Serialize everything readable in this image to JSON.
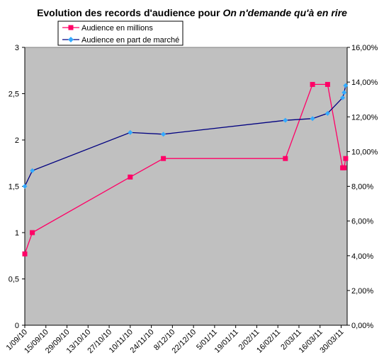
{
  "chart_data": {
    "type": "line",
    "title": {
      "prefix": "Evolution des records d'audience pour ",
      "show": "On n'demande qu'à en rire"
    },
    "plot_background": "#c0c0c0",
    "x_tick_labels": [
      {
        "date": "2010-09-01",
        "label": "1/09/10"
      },
      {
        "date": "2010-09-15",
        "label": "15/09/10"
      },
      {
        "date": "2010-09-29",
        "label": "29/09/10"
      },
      {
        "date": "2010-10-13",
        "label": "13/10/10"
      },
      {
        "date": "2010-10-27",
        "label": "27/10/10"
      },
      {
        "date": "2010-11-10",
        "label": "10/11/10"
      },
      {
        "date": "2010-11-24",
        "label": "24/11/10"
      },
      {
        "date": "2010-12-08",
        "label": "8/12/10"
      },
      {
        "date": "2010-12-22",
        "label": "22/12/10"
      },
      {
        "date": "2011-01-05",
        "label": "5/01/11"
      },
      {
        "date": "2011-01-19",
        "label": "19/01/11"
      },
      {
        "date": "2011-02-02",
        "label": "2/02/11"
      },
      {
        "date": "2011-02-16",
        "label": "16/02/11"
      },
      {
        "date": "2011-03-02",
        "label": "2/03/11"
      },
      {
        "date": "2011-03-16",
        "label": "16/03/11"
      },
      {
        "date": "2011-03-30",
        "label": "30/03/11"
      }
    ],
    "x_range": [
      "2010-09-01",
      "2011-04-03"
    ],
    "y_left": {
      "range": [
        0,
        3
      ],
      "ticks": [
        0,
        0.5,
        1,
        1.5,
        2,
        2.5,
        3
      ],
      "tick_labels": [
        "0",
        "0,5",
        "1",
        "1,5",
        "2",
        "2,5",
        "3"
      ]
    },
    "y_right": {
      "range": [
        0,
        16
      ],
      "ticks": [
        0,
        2,
        4,
        6,
        8,
        10,
        12,
        14,
        16
      ],
      "tick_labels": [
        "0,00%",
        "2,00%",
        "4,00%",
        "6,00%",
        "8,00%",
        "10,00%",
        "12,00%",
        "14,00%",
        "16,00%"
      ]
    },
    "grid": false,
    "legend_position": "top-center",
    "series": [
      {
        "name": "Audience en millions",
        "axis": "left",
        "color": "#ff0066",
        "marker": "square",
        "points": [
          {
            "x": "2010-09-01",
            "y": 0.77
          },
          {
            "x": "2010-09-06",
            "y": 1.0
          },
          {
            "x": "2010-11-10",
            "y": 1.6
          },
          {
            "x": "2010-12-02",
            "y": 1.8
          },
          {
            "x": "2011-02-21",
            "y": 1.8
          },
          {
            "x": "2011-03-11",
            "y": 2.6
          },
          {
            "x": "2011-03-21",
            "y": 2.6
          },
          {
            "x": "2011-03-31",
            "y": 1.7
          },
          {
            "x": "2011-04-01",
            "y": 1.7
          },
          {
            "x": "2011-04-02",
            "y": 1.8
          }
        ]
      },
      {
        "name": "Audience en part de marché",
        "axis": "right",
        "color": "#000080",
        "marker_color": "#33aaff",
        "marker": "diamond",
        "points": [
          {
            "x": "2010-09-01",
            "y": 8.0
          },
          {
            "x": "2010-09-06",
            "y": 8.9
          },
          {
            "x": "2010-11-10",
            "y": 11.1
          },
          {
            "x": "2010-12-02",
            "y": 11.0
          },
          {
            "x": "2011-02-21",
            "y": 11.8
          },
          {
            "x": "2011-03-11",
            "y": 11.9
          },
          {
            "x": "2011-03-21",
            "y": 12.2
          },
          {
            "x": "2011-03-31",
            "y": 13.1
          },
          {
            "x": "2011-04-01",
            "y": 13.4
          },
          {
            "x": "2011-04-02",
            "y": 13.8
          }
        ]
      }
    ]
  }
}
